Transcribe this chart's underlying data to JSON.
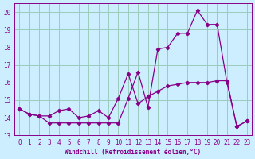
{
  "background_color": "#cceeff",
  "grid_color": "#99ccbb",
  "line_color": "#880088",
  "marker_color": "#880088",
  "xlabel": "Windchill (Refroidissement éolien,°C)",
  "ylim": [
    13,
    20.5
  ],
  "yticks": [
    13,
    14,
    15,
    16,
    17,
    18,
    19,
    20
  ],
  "xlim": [
    -0.5,
    23.5
  ],
  "xticks": [
    0,
    1,
    2,
    3,
    4,
    5,
    6,
    7,
    8,
    9,
    10,
    11,
    12,
    13,
    14,
    15,
    16,
    17,
    18,
    19,
    20,
    21,
    22,
    23
  ],
  "series1_x": [
    0,
    1,
    2,
    3,
    4,
    5,
    6,
    7,
    8,
    9,
    10,
    11,
    12,
    13,
    14,
    15,
    16,
    17,
    18,
    19,
    20,
    21,
    22,
    23
  ],
  "series1_y": [
    14.5,
    14.2,
    14.1,
    13.7,
    13.7,
    13.7,
    13.7,
    13.7,
    13.7,
    13.7,
    13.7,
    15.1,
    16.6,
    14.6,
    17.9,
    18.0,
    18.8,
    18.8,
    20.1,
    19.3,
    19.3,
    16.0,
    13.5,
    13.8
  ],
  "series2_x": [
    0,
    1,
    2,
    3,
    4,
    5,
    6,
    7,
    8,
    9,
    10,
    11,
    12,
    13,
    14,
    15,
    16,
    17,
    18,
    19,
    20,
    21,
    22,
    23
  ],
  "series2_y": [
    14.5,
    14.2,
    14.1,
    14.1,
    14.4,
    14.5,
    14.0,
    14.1,
    14.4,
    14.0,
    15.1,
    16.5,
    14.8,
    15.2,
    15.5,
    15.8,
    15.9,
    16.0,
    16.0,
    16.0,
    16.1,
    16.1,
    13.5,
    13.8
  ]
}
